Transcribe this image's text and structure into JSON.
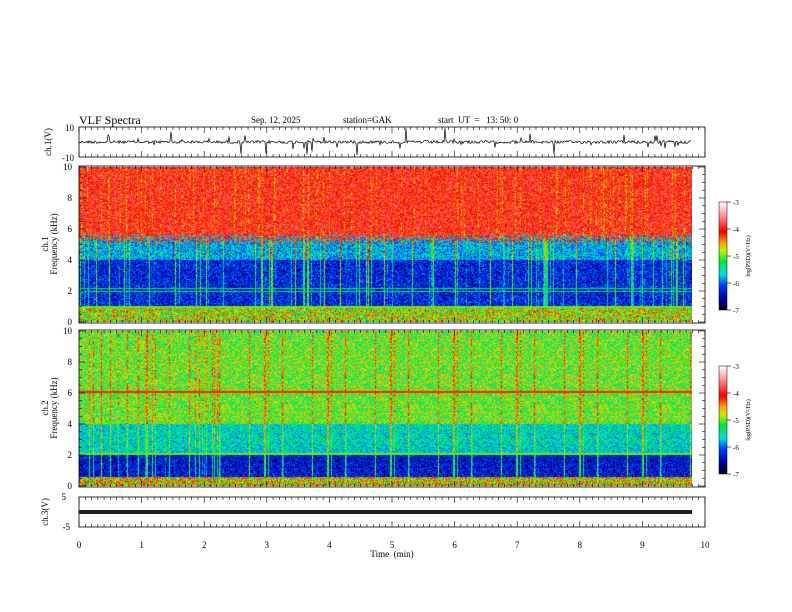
{
  "header": {
    "title": "VLF Spectra",
    "date": "Sep. 12, 2025",
    "station": "station=GAK",
    "start_ut": "start  UT  =   13: 50: 0"
  },
  "chart_data": [
    {
      "type": "line",
      "name": "ch1-waveform",
      "ylabel": "ch.1(V)",
      "ylim": [
        -10,
        10
      ],
      "yticks": [
        "10",
        "-10"
      ],
      "baseline": 0,
      "note": "noisy waveform near 0 V with frequent spikes"
    },
    {
      "type": "heatmap",
      "name": "ch1-spectrogram",
      "ylabel_top": "ch.1",
      "ylabel": "Frequency (kHz)",
      "ylim": [
        0,
        10
      ],
      "yticks": [
        "0",
        "2",
        "4",
        "6",
        "8",
        "10"
      ],
      "colorbar": {
        "label": "log(PSD)(V²/Hz)",
        "range": [
          -7,
          -3
        ],
        "ticks": [
          "-3",
          "-4",
          "-5",
          "-6",
          "-7"
        ]
      },
      "description_levels": {
        "above_5kHz": -4.0,
        "1_to_5kHz": -6.3,
        "below_1kHz": -4.5
      }
    },
    {
      "type": "heatmap",
      "name": "ch2-spectrogram",
      "ylabel_top": "ch.2",
      "ylabel": "Frequency (kHz)",
      "ylim": [
        0,
        10
      ],
      "yticks": [
        "0",
        "2",
        "4",
        "6",
        "8",
        "10"
      ],
      "colorbar": {
        "label": "log(PSD)(V²/Hz)",
        "range": [
          -7,
          -3
        ],
        "ticks": [
          "-3",
          "-4",
          "-5",
          "-6",
          "-7"
        ]
      },
      "description_levels": {
        "above_4kHz": -5.0,
        "2_to_4kHz": -5.6,
        "below_2kHz": -6.4,
        "line_6kHz": -4.0
      }
    },
    {
      "type": "line",
      "name": "ch3-waveform",
      "ylabel": "ch.3(V)",
      "ylim": [
        -5,
        5
      ],
      "yticks": [
        "5",
        "-5"
      ],
      "baseline": -1.5
    }
  ],
  "xaxis": {
    "label": "Time  (min)",
    "range": [
      0,
      10
    ],
    "ticks": [
      "0",
      "1",
      "2",
      "3",
      "4",
      "5",
      "6",
      "7",
      "8",
      "9",
      "10"
    ]
  }
}
